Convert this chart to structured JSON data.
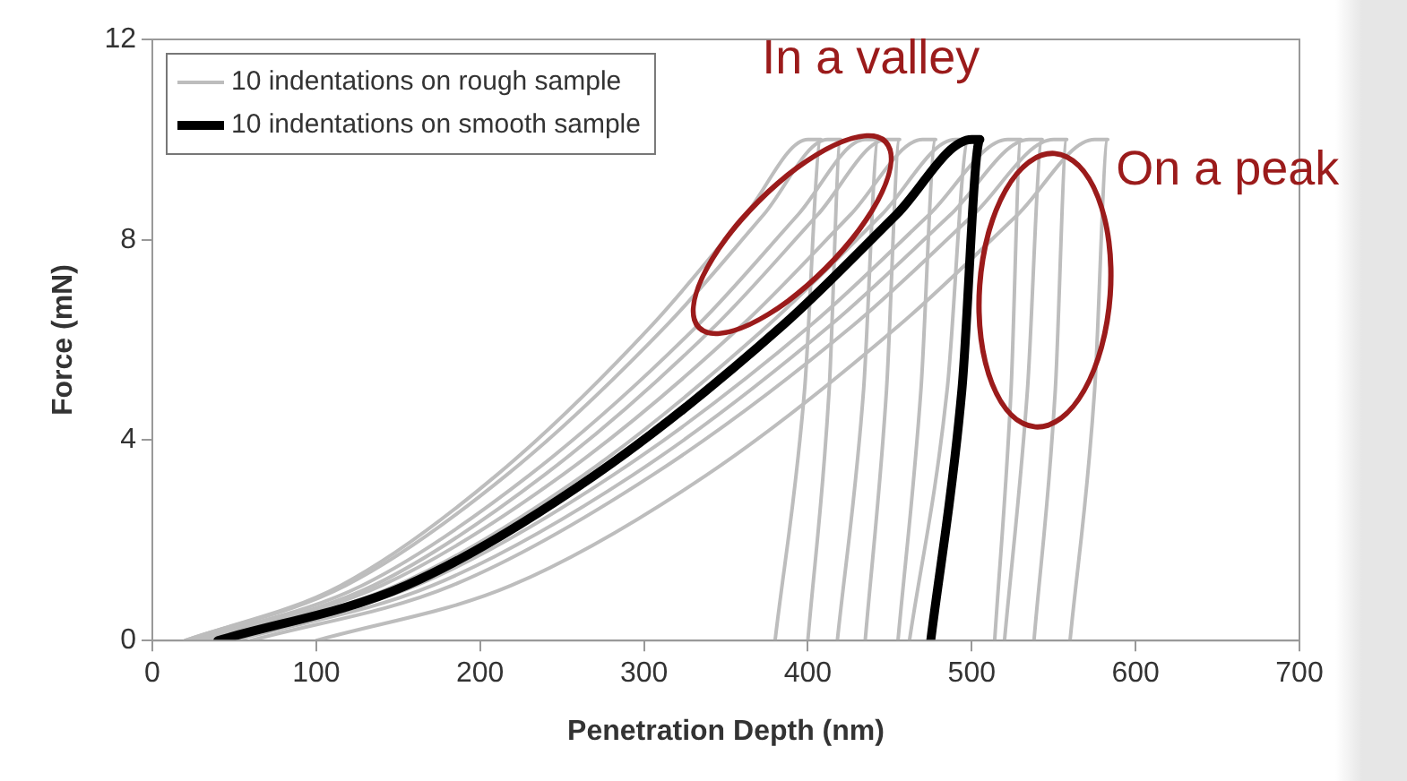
{
  "chart_data": {
    "type": "line",
    "xlabel": "Penetration Depth (nm)",
    "ylabel": "Force (mN)",
    "xlim": [
      0,
      700
    ],
    "xticks": [
      0,
      100,
      200,
      300,
      400,
      500,
      600,
      700
    ],
    "ylim": [
      0,
      12
    ],
    "yticks": [
      0,
      4,
      8,
      12
    ],
    "grid": false,
    "legend": "top left",
    "marker": "none",
    "line_style": "solid",
    "annotations": [
      "In a valley",
      "On a peak"
    ],
    "series": [
      {
        "name": "10 indentations on rough sample",
        "color": "#bdbdbd",
        "x": [
          20,
          115,
          210,
          305,
          362,
          400,
          408,
          398,
          380
        ],
        "values": [
          0,
          1.1,
          3.3,
          6.3,
          8.5,
          10,
          10,
          5,
          0
        ]
      },
      {
        "color": "#bdbdbd",
        "x": [
          20,
          118,
          216,
          314,
          373,
          412,
          420,
          413,
          400
        ],
        "values": [
          0,
          1.1,
          3.3,
          6.3,
          8.5,
          10,
          10,
          5,
          0
        ]
      },
      {
        "color": "#bdbdbd",
        "x": [
          25,
          128,
          230,
          333,
          394,
          435,
          443,
          434,
          418
        ],
        "values": [
          0,
          1.1,
          3.3,
          6.3,
          8.5,
          10,
          10,
          5,
          0
        ]
      },
      {
        "color": "#bdbdbd",
        "x": [
          30,
          135,
          239,
          344,
          406,
          448,
          456,
          448,
          435
        ],
        "values": [
          0,
          1.1,
          3.3,
          6.3,
          8.5,
          10,
          10,
          5,
          0
        ]
      },
      {
        "color": "#bdbdbd",
        "x": [
          30,
          140,
          250,
          360,
          426,
          470,
          478,
          469,
          455
        ],
        "values": [
          0,
          1.1,
          3.3,
          6.3,
          8.5,
          10,
          10,
          5,
          0
        ]
      },
      {
        "color": "#bdbdbd",
        "x": [
          35,
          149,
          263,
          376,
          445,
          490,
          498,
          485,
          462
        ],
        "values": [
          0,
          1.1,
          3.3,
          6.3,
          8.5,
          10,
          10,
          5,
          0
        ]
      },
      {
        "color": "#bdbdbd",
        "x": [
          40,
          161,
          281,
          402,
          474,
          522,
          530,
          524,
          514
        ],
        "values": [
          0,
          1.1,
          3.3,
          6.3,
          8.5,
          10,
          10,
          5,
          0
        ]
      },
      {
        "color": "#bdbdbd",
        "x": [
          50,
          171,
          293,
          414,
          487,
          535,
          543,
          534,
          520
        ],
        "values": [
          0,
          1.1,
          3.3,
          6.3,
          8.5,
          10,
          10,
          5,
          0
        ]
      },
      {
        "color": "#bdbdbd",
        "x": [
          60,
          183,
          305,
          428,
          501,
          550,
          558,
          551,
          538
        ],
        "values": [
          0,
          1.1,
          3.3,
          6.3,
          8.5,
          10,
          10,
          5,
          0
        ]
      },
      {
        "color": "#bdbdbd",
        "x": [
          100,
          219,
          338,
          456,
          528,
          575,
          583,
          575,
          560
        ],
        "values": [
          0,
          1.1,
          3.3,
          6.3,
          8.5,
          10,
          10,
          5,
          0
        ]
      },
      {
        "name": "10 indentations on smooth sample",
        "color": "#000000",
        "x": [
          40,
          155,
          270,
          385,
          454,
          500,
          505,
          494,
          475
        ],
        "values": [
          0,
          1.1,
          3.3,
          6.3,
          8.5,
          10,
          10,
          5,
          0
        ]
      }
    ]
  }
}
